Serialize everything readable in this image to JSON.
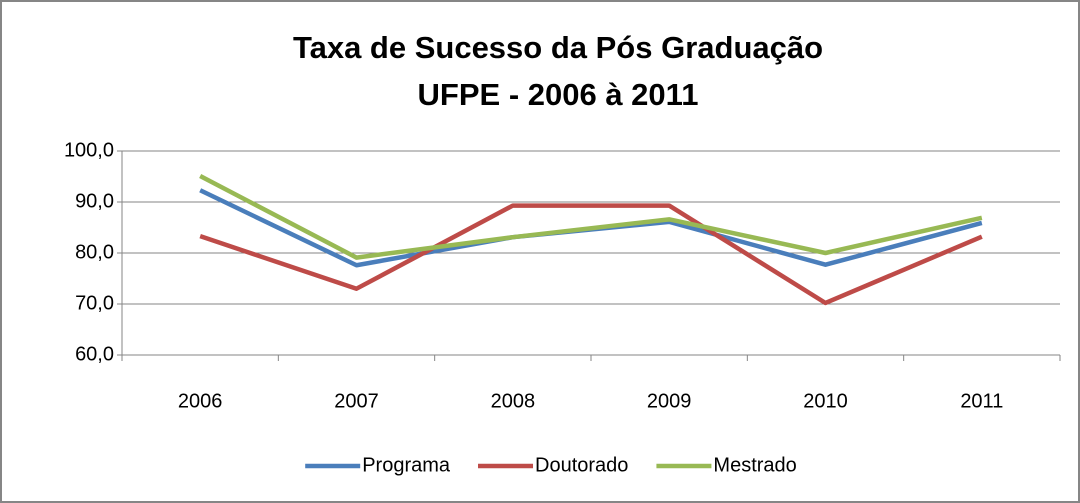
{
  "chart_data": {
    "type": "line",
    "title": "Taxa de Sucesso da Pós Graduação",
    "subtitle": "UFPE - 2006 à 2011",
    "categories": [
      "2006",
      "2007",
      "2008",
      "2009",
      "2010",
      "2011"
    ],
    "series": [
      {
        "name": "Programa",
        "color": "#4a7ebb",
        "values": [
          92.3,
          77.6,
          83.1,
          86.1,
          77.7,
          85.9
        ]
      },
      {
        "name": "Doutorado",
        "color": "#be4b48",
        "values": [
          83.3,
          73.0,
          89.3,
          89.3,
          70.2,
          83.2
        ]
      },
      {
        "name": "Mestrado",
        "color": "#98b954",
        "values": [
          95.1,
          79.1,
          83.1,
          86.6,
          80.0,
          86.9
        ]
      }
    ],
    "ylim": [
      60,
      100
    ],
    "yticks": [
      {
        "value": 60,
        "label": "60,0"
      },
      {
        "value": 70,
        "label": "70,0"
      },
      {
        "value": 80,
        "label": "80,0"
      },
      {
        "value": 90,
        "label": "90,0"
      },
      {
        "value": 100,
        "label": "100,0"
      }
    ],
    "grid": true,
    "legend": "bottom"
  }
}
